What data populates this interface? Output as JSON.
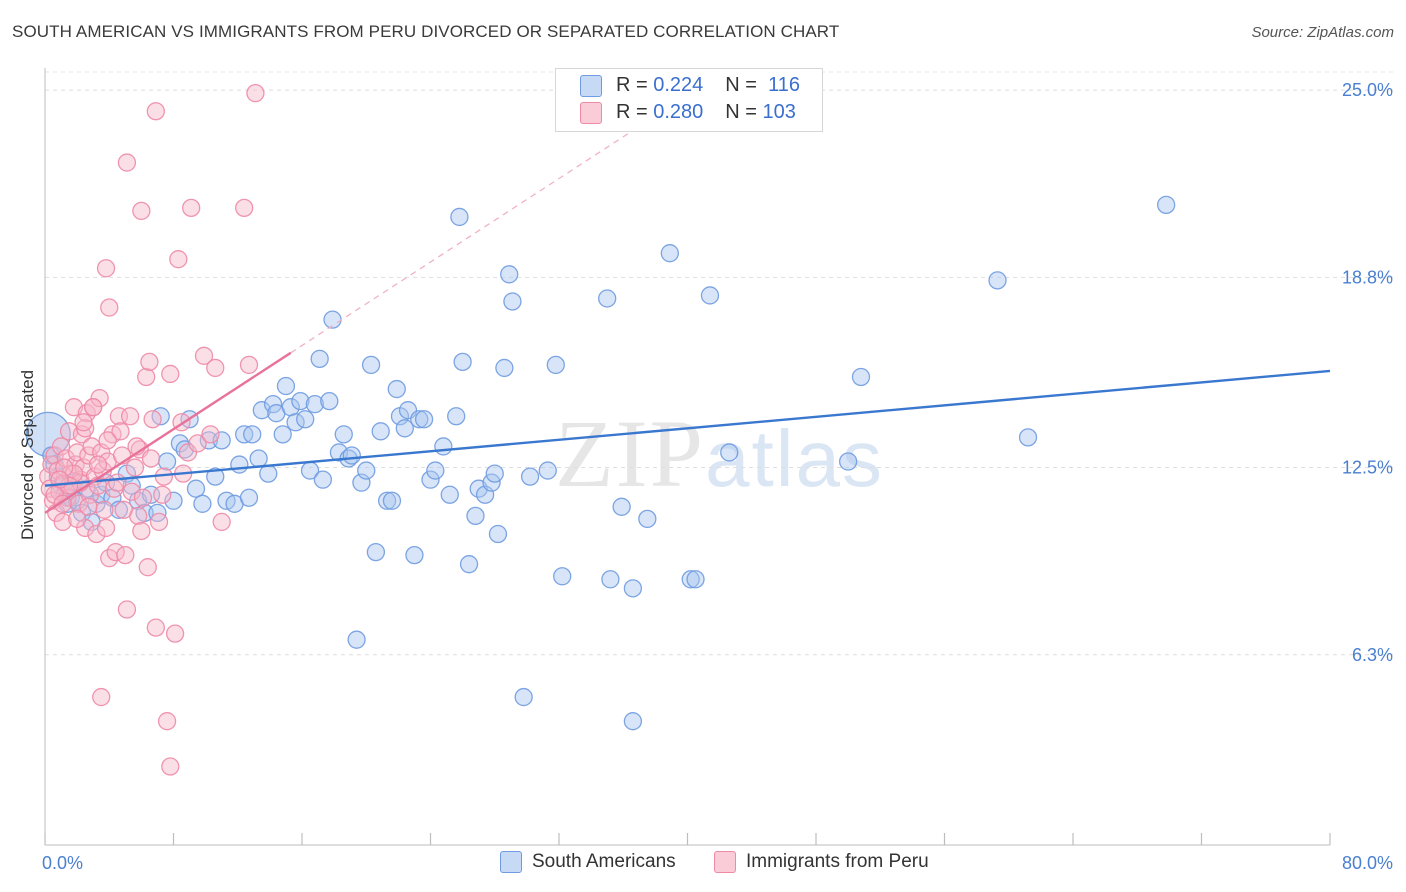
{
  "header": {
    "title": "SOUTH AMERICAN VS IMMIGRANTS FROM PERU DIVORCED OR SEPARATED CORRELATION CHART",
    "source": "Source: ZipAtlas.com"
  },
  "watermark": {
    "zip": "ZIP",
    "atlas": "atlas"
  },
  "legend": {
    "rows": [
      {
        "r_label": "R =",
        "r_value": "0.224",
        "n_label": "N =",
        "n_value": "116",
        "color": "#a9c6f0",
        "border": "#6f9be0"
      },
      {
        "r_label": "R =",
        "r_value": "0.280",
        "n_label": "N =",
        "n_value": "103",
        "color": "#f7b8c9",
        "border": "#ee8aa6"
      }
    ]
  },
  "bottom_legend": [
    {
      "label": "South Americans",
      "color": "#a9c6f0",
      "border": "#6f9be0"
    },
    {
      "label": "Immigrants from Peru",
      "color": "#f7b8c9",
      "border": "#ee8aa6"
    }
  ],
  "chart_data": {
    "type": "scatter",
    "title": "SOUTH AMERICAN VS IMMIGRANTS FROM PERU DIVORCED OR SEPARATED CORRELATION CHART",
    "xlabel": "",
    "ylabel": "Divorced or Separated",
    "xlim": [
      0,
      80
    ],
    "ylim": [
      0,
      25.6
    ],
    "x_tick_labels": [
      "0.0%",
      "80.0%"
    ],
    "y_ticks": [
      6.3,
      12.5,
      18.8,
      25.0
    ],
    "y_tick_labels": [
      "6.3%",
      "12.5%",
      "18.8%",
      "25.0%"
    ],
    "grid": true,
    "series": [
      {
        "name": "South Americans",
        "color": "#6f9be0",
        "fill": "#a9c6f0",
        "trend": {
          "x0": 0,
          "y0": 11.9,
          "x1": 80,
          "y1": 15.7,
          "color": "#3a78d0"
        },
        "points": [
          [
            0.2,
            13.6
          ],
          [
            0.4,
            12.9
          ],
          [
            0.6,
            12.6
          ],
          [
            0.8,
            12.2
          ],
          [
            1.0,
            11.9
          ],
          [
            1.2,
            11.6
          ],
          [
            1.4,
            11.3
          ],
          [
            1.6,
            11.5
          ],
          [
            1.8,
            12.0
          ],
          [
            2.0,
            11.4
          ],
          [
            2.3,
            11.0
          ],
          [
            2.6,
            11.8
          ],
          [
            2.9,
            10.7
          ],
          [
            3.2,
            11.3
          ],
          [
            3.5,
            11.6
          ],
          [
            3.8,
            12.0
          ],
          [
            4.2,
            11.5
          ],
          [
            4.6,
            11.1
          ],
          [
            5.1,
            12.3
          ],
          [
            5.4,
            11.9
          ],
          [
            5.8,
            11.4
          ],
          [
            6.2,
            11.0
          ],
          [
            6.6,
            11.6
          ],
          [
            7.0,
            11.0
          ],
          [
            7.2,
            14.2
          ],
          [
            7.6,
            12.7
          ],
          [
            8.0,
            11.4
          ],
          [
            8.4,
            13.3
          ],
          [
            8.7,
            13.1
          ],
          [
            9.0,
            14.1
          ],
          [
            9.4,
            11.8
          ],
          [
            9.8,
            11.3
          ],
          [
            10.2,
            13.4
          ],
          [
            10.6,
            12.2
          ],
          [
            11.0,
            13.4
          ],
          [
            11.3,
            11.4
          ],
          [
            11.8,
            11.3
          ],
          [
            12.1,
            12.6
          ],
          [
            12.4,
            13.6
          ],
          [
            12.7,
            11.5
          ],
          [
            12.9,
            13.6
          ],
          [
            13.3,
            12.8
          ],
          [
            13.5,
            14.4
          ],
          [
            13.9,
            12.3
          ],
          [
            14.2,
            14.6
          ],
          [
            14.4,
            14.3
          ],
          [
            14.8,
            13.6
          ],
          [
            15.0,
            15.2
          ],
          [
            15.3,
            14.5
          ],
          [
            15.6,
            14.0
          ],
          [
            15.9,
            14.7
          ],
          [
            16.2,
            14.1
          ],
          [
            16.5,
            12.4
          ],
          [
            16.8,
            14.6
          ],
          [
            17.1,
            16.1
          ],
          [
            17.3,
            12.1
          ],
          [
            17.7,
            14.7
          ],
          [
            17.9,
            17.4
          ],
          [
            18.3,
            13.0
          ],
          [
            18.6,
            13.6
          ],
          [
            18.9,
            12.8
          ],
          [
            19.1,
            12.9
          ],
          [
            19.4,
            6.8
          ],
          [
            19.7,
            12.0
          ],
          [
            20.0,
            12.4
          ],
          [
            20.3,
            15.9
          ],
          [
            20.6,
            9.7
          ],
          [
            20.9,
            13.7
          ],
          [
            21.3,
            11.4
          ],
          [
            21.6,
            11.4
          ],
          [
            21.9,
            15.1
          ],
          [
            22.1,
            14.2
          ],
          [
            22.4,
            13.8
          ],
          [
            22.6,
            14.4
          ],
          [
            23.0,
            9.6
          ],
          [
            23.3,
            14.1
          ],
          [
            23.6,
            14.1
          ],
          [
            24.0,
            12.1
          ],
          [
            24.3,
            12.4
          ],
          [
            24.8,
            13.2
          ],
          [
            25.2,
            11.6
          ],
          [
            25.6,
            14.2
          ],
          [
            25.8,
            20.8
          ],
          [
            26.0,
            16.0
          ],
          [
            26.4,
            9.3
          ],
          [
            26.8,
            10.9
          ],
          [
            27.0,
            11.8
          ],
          [
            27.4,
            11.6
          ],
          [
            27.8,
            12.0
          ],
          [
            28.0,
            12.3
          ],
          [
            28.2,
            10.3
          ],
          [
            28.6,
            15.8
          ],
          [
            28.9,
            18.9
          ],
          [
            29.1,
            18.0
          ],
          [
            29.8,
            4.9
          ],
          [
            30.2,
            12.2
          ],
          [
            31.3,
            12.4
          ],
          [
            31.8,
            15.9
          ],
          [
            32.2,
            8.9
          ],
          [
            35.0,
            18.1
          ],
          [
            35.2,
            8.8
          ],
          [
            35.9,
            11.2
          ],
          [
            36.6,
            8.5
          ],
          [
            37.5,
            10.8
          ],
          [
            38.9,
            19.6
          ],
          [
            40.2,
            8.8
          ],
          [
            40.5,
            8.8
          ],
          [
            41.4,
            18.2
          ],
          [
            42.6,
            13.0
          ],
          [
            36.6,
            4.1
          ],
          [
            50.0,
            12.7
          ],
          [
            50.8,
            15.5
          ],
          [
            59.3,
            18.7
          ],
          [
            61.2,
            13.5
          ],
          [
            69.8,
            21.2
          ]
        ]
      },
      {
        "name": "Immigrants from Peru",
        "color": "#ee8aa6",
        "fill": "#f7b8c9",
        "trend": {
          "x0": 0,
          "y0": 11.0,
          "x1": 15.3,
          "y1": 16.3,
          "color": "#e8729a"
        },
        "trend_dashed": {
          "x0": 15.3,
          "y0": 16.3,
          "x1": 37.0,
          "y1": 23.8,
          "color": "#f0b2c3"
        },
        "points": [
          [
            0.2,
            12.2
          ],
          [
            0.3,
            11.8
          ],
          [
            0.4,
            12.6
          ],
          [
            0.5,
            11.4
          ],
          [
            0.6,
            12.9
          ],
          [
            0.7,
            11.0
          ],
          [
            0.8,
            12.4
          ],
          [
            0.9,
            11.7
          ],
          [
            1.0,
            13.2
          ],
          [
            1.1,
            10.7
          ],
          [
            1.2,
            12.0
          ],
          [
            1.3,
            12.8
          ],
          [
            1.4,
            11.5
          ],
          [
            1.5,
            13.7
          ],
          [
            1.6,
            12.3
          ],
          [
            1.7,
            11.9
          ],
          [
            1.8,
            14.5
          ],
          [
            1.9,
            12.6
          ],
          [
            2.0,
            13.0
          ],
          [
            2.1,
            11.3
          ],
          [
            2.2,
            12.1
          ],
          [
            2.3,
            13.6
          ],
          [
            2.4,
            12.5
          ],
          [
            2.5,
            10.5
          ],
          [
            2.6,
            14.3
          ],
          [
            2.7,
            12.9
          ],
          [
            2.8,
            11.6
          ],
          [
            2.9,
            13.2
          ],
          [
            3.0,
            14.5
          ],
          [
            3.1,
            12.2
          ],
          [
            3.2,
            10.3
          ],
          [
            3.3,
            11.9
          ],
          [
            3.4,
            14.8
          ],
          [
            3.5,
            13.0
          ],
          [
            3.6,
            12.4
          ],
          [
            3.7,
            11.1
          ],
          [
            3.8,
            10.5
          ],
          [
            3.9,
            12.7
          ],
          [
            4.0,
            9.5
          ],
          [
            4.2,
            13.6
          ],
          [
            4.3,
            11.8
          ],
          [
            4.4,
            9.7
          ],
          [
            4.6,
            14.2
          ],
          [
            4.7,
            13.7
          ],
          [
            4.8,
            12.9
          ],
          [
            5.0,
            9.6
          ],
          [
            5.1,
            7.8
          ],
          [
            5.3,
            14.2
          ],
          [
            5.4,
            11.7
          ],
          [
            5.6,
            12.5
          ],
          [
            5.8,
            10.9
          ],
          [
            5.9,
            13.1
          ],
          [
            6.0,
            10.4
          ],
          [
            6.1,
            11.5
          ],
          [
            6.3,
            15.5
          ],
          [
            6.4,
            9.2
          ],
          [
            6.5,
            16.0
          ],
          [
            6.7,
            14.1
          ],
          [
            6.9,
            7.2
          ],
          [
            7.1,
            10.7
          ],
          [
            7.3,
            11.6
          ],
          [
            7.6,
            4.1
          ],
          [
            7.8,
            2.6
          ],
          [
            8.1,
            7.0
          ],
          [
            8.3,
            19.4
          ],
          [
            8.6,
            12.3
          ],
          [
            8.9,
            13.0
          ],
          [
            9.1,
            21.1
          ],
          [
            9.5,
            13.3
          ],
          [
            9.9,
            16.2
          ],
          [
            10.3,
            13.6
          ],
          [
            10.6,
            15.8
          ],
          [
            11.0,
            10.7
          ],
          [
            12.7,
            15.9
          ],
          [
            12.4,
            21.1
          ],
          [
            13.1,
            24.9
          ],
          [
            6.9,
            24.3
          ],
          [
            5.1,
            22.6
          ],
          [
            6.0,
            21.0
          ],
          [
            3.8,
            19.1
          ],
          [
            4.0,
            17.8
          ],
          [
            3.5,
            4.9
          ],
          [
            3.0,
            14.5
          ],
          [
            2.5,
            13.8
          ],
          [
            2.2,
            12.0
          ],
          [
            1.8,
            12.3
          ],
          [
            1.5,
            11.9
          ],
          [
            1.2,
            12.5
          ],
          [
            0.9,
            12.1
          ],
          [
            0.6,
            11.6
          ],
          [
            7.8,
            15.6
          ],
          [
            8.5,
            14.0
          ],
          [
            5.7,
            13.2
          ],
          [
            4.5,
            12.0
          ],
          [
            3.3,
            12.6
          ],
          [
            2.7,
            11.2
          ],
          [
            2.0,
            10.8
          ],
          [
            1.1,
            11.3
          ],
          [
            6.6,
            12.8
          ],
          [
            7.4,
            12.2
          ],
          [
            4.9,
            11.1
          ],
          [
            3.9,
            13.4
          ],
          [
            2.4,
            14.0
          ]
        ]
      }
    ]
  }
}
